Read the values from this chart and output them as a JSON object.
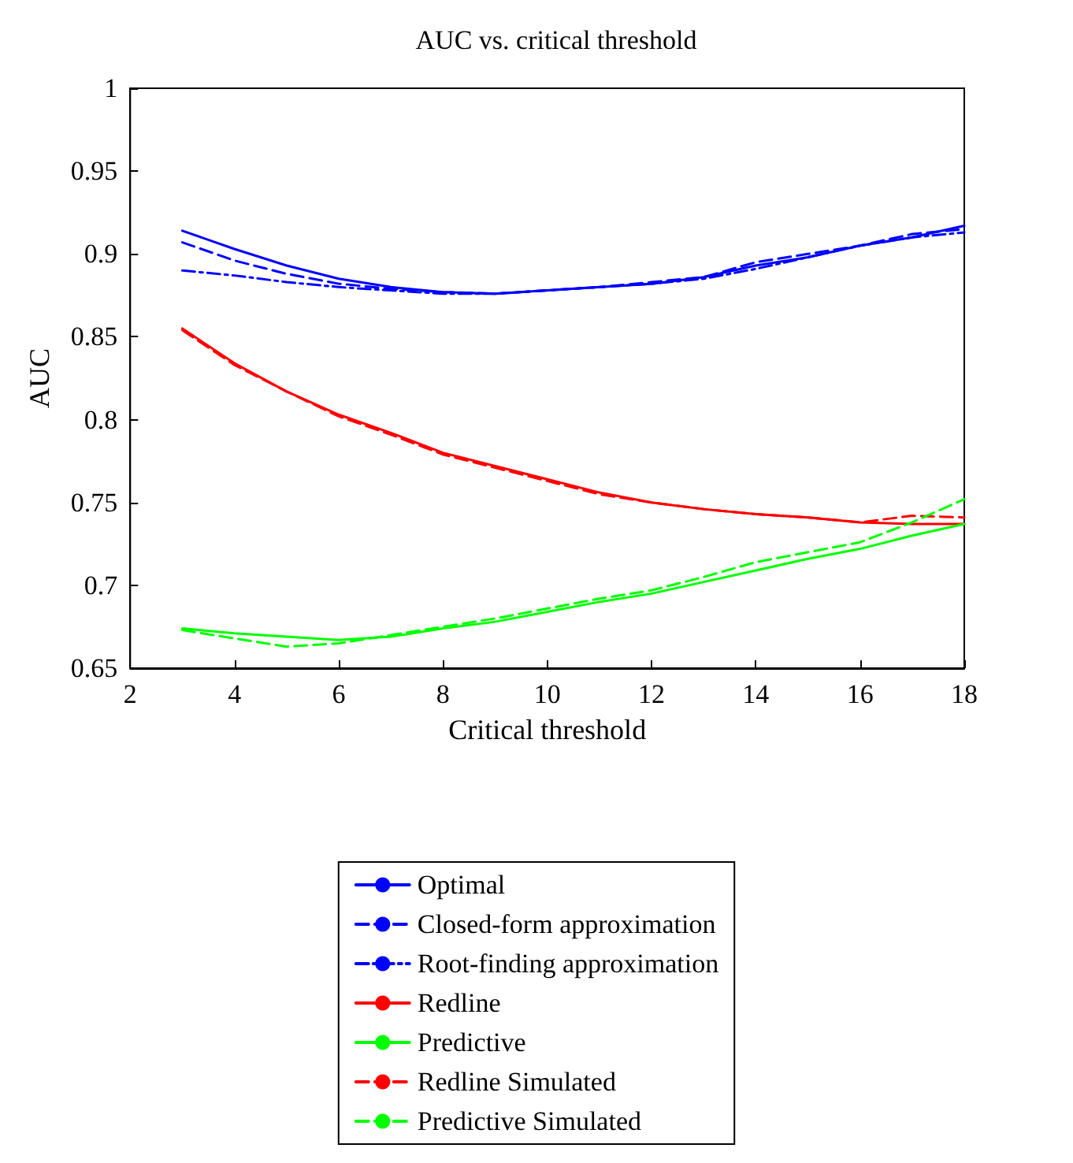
{
  "chart_data": {
    "type": "line",
    "title": "AUC vs. critical threshold",
    "xlabel": "Critical threshold",
    "ylabel": "AUC",
    "x": [
      3,
      4,
      5,
      6,
      7,
      8,
      9,
      10,
      11,
      12,
      13,
      14,
      15,
      16,
      17,
      18
    ],
    "xlim": [
      2,
      18
    ],
    "xticks": [
      2,
      4,
      6,
      8,
      10,
      12,
      14,
      16,
      18
    ],
    "ylim": [
      0.65,
      1
    ],
    "yticks": [
      0.65,
      0.7,
      0.75,
      0.8,
      0.85,
      0.9,
      0.95,
      1
    ],
    "grid": false,
    "legend": "bottom",
    "marker": "none",
    "series": [
      {
        "name": "Optimal",
        "color": "#0000ff",
        "line_style": "solid",
        "values": [
          0.914,
          0.903,
          0.893,
          0.885,
          0.88,
          0.877,
          0.876,
          0.878,
          0.88,
          0.882,
          0.886,
          0.893,
          0.898,
          0.905,
          0.91,
          0.917
        ]
      },
      {
        "name": "Closed-form approximation",
        "color": "#0000ff",
        "line_style": "dashed",
        "values": [
          0.907,
          0.896,
          0.888,
          0.882,
          0.879,
          0.877,
          0.876,
          0.878,
          0.88,
          0.883,
          0.886,
          0.895,
          0.9,
          0.905,
          0.912,
          0.915
        ]
      },
      {
        "name": "Root-finding approximation",
        "color": "#0000ff",
        "line_style": "dashdot",
        "values": [
          0.89,
          0.887,
          0.883,
          0.88,
          0.878,
          0.876,
          0.876,
          0.878,
          0.88,
          0.882,
          0.885,
          0.891,
          0.898,
          0.905,
          0.91,
          0.913
        ]
      },
      {
        "name": "Redline",
        "color": "#ff0000",
        "line_style": "solid",
        "values": [
          0.855,
          0.834,
          0.817,
          0.803,
          0.792,
          0.78,
          0.772,
          0.764,
          0.756,
          0.75,
          0.746,
          0.743,
          0.741,
          0.738,
          0.737,
          0.737
        ]
      },
      {
        "name": "Predictive",
        "color": "#00ff00",
        "line_style": "solid",
        "values": [
          0.674,
          0.671,
          0.669,
          0.667,
          0.669,
          0.674,
          0.678,
          0.684,
          0.69,
          0.695,
          0.702,
          0.709,
          0.716,
          0.722,
          0.73,
          0.737
        ]
      },
      {
        "name": "Redline Simulated",
        "color": "#ff0000",
        "line_style": "dashed",
        "values": [
          0.854,
          0.833,
          0.817,
          0.802,
          0.791,
          0.779,
          0.771,
          0.763,
          0.755,
          0.75,
          0.746,
          0.743,
          0.741,
          0.738,
          0.742,
          0.741
        ]
      },
      {
        "name": "Predictive Simulated",
        "color": "#00ff00",
        "line_style": "dashed",
        "values": [
          0.673,
          0.668,
          0.663,
          0.665,
          0.67,
          0.675,
          0.68,
          0.686,
          0.692,
          0.697,
          0.705,
          0.714,
          0.72,
          0.726,
          0.738,
          0.752
        ]
      }
    ]
  }
}
